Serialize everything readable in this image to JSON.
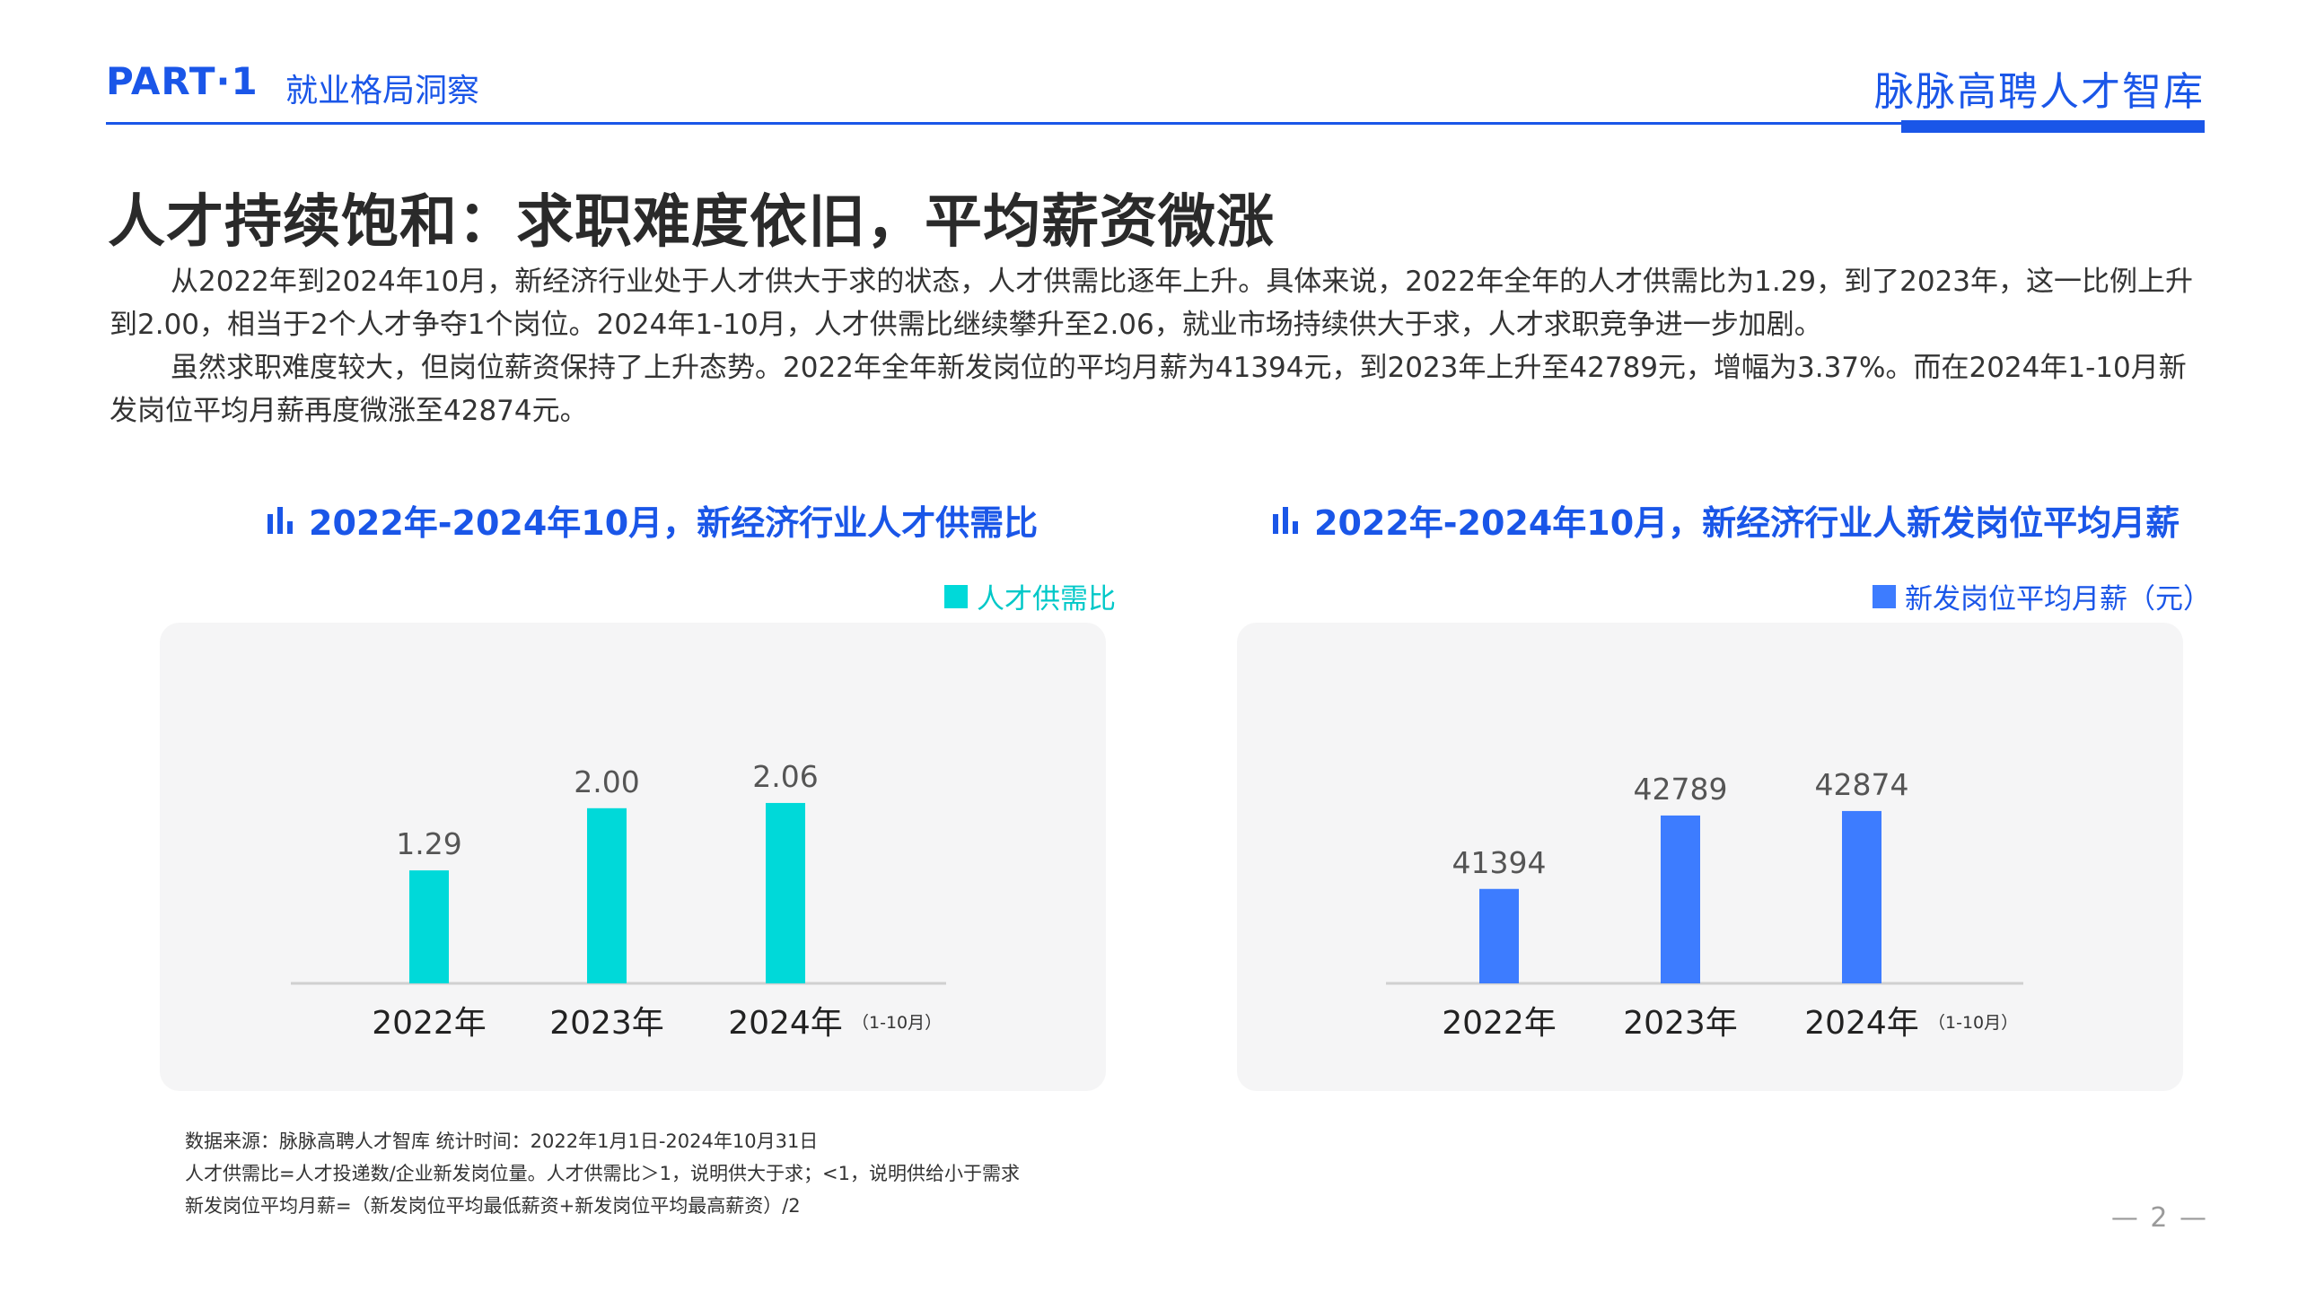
{
  "header": {
    "part": "PART·1",
    "section": "就业格局洞察",
    "brand": "脉脉高聘人才智库"
  },
  "title": "人才持续饱和：求职难度依旧，平均薪资微涨",
  "paragraphs": [
    "从2022年到2024年10月，新经济行业处于人才供大于求的状态，人才供需比逐年上升。具体来说，2022年全年的人才供需比为1.29，到了2023年，这一比例上升到2.00，相当于2个人才争夺1个岗位。2024年1-10月，人才供需比继续攀升至2.06，就业市场持续供大于求，人才求职竞争进一步加剧。",
    "虽然求职难度较大，但岗位薪资保持了上升态势。2022年全年新发岗位的平均月薪为41394元，到2023年上升至42789元，增幅为3.37%。而在2024年1-10月新发岗位平均月薪再度微涨至42874元。"
  ],
  "colors": {
    "brand": "#1a56e8",
    "cyan": "#00d9d9",
    "blue": "#3d7cff"
  },
  "chart_data": [
    {
      "type": "bar",
      "title": "2022年-2024年10月，新经济行业人才供需比",
      "categories": [
        "2022年",
        "2023年",
        "2024年"
      ],
      "category_notes": [
        "",
        "",
        "（1-10月）"
      ],
      "series": [
        {
          "name": "人才供需比",
          "values": [
            1.29,
            2.0,
            2.06
          ]
        }
      ],
      "value_labels": [
        "1.29",
        "2.00",
        "2.06"
      ],
      "ylim": [
        0,
        2.5
      ],
      "color": "#00d9d9",
      "legend_position": "top-right",
      "grid": false
    },
    {
      "type": "bar",
      "title": "2022年-2024年10月，新经济行业人新发岗位平均月薪",
      "categories": [
        "2022年",
        "2023年",
        "2024年"
      ],
      "category_notes": [
        "",
        "",
        "（1-10月）"
      ],
      "series": [
        {
          "name": "新发岗位平均月薪（元）",
          "values": [
            41394,
            42789,
            42874
          ]
        }
      ],
      "value_labels": [
        "41394",
        "42789",
        "42874"
      ],
      "ylim": [
        39600,
        44100
      ],
      "color": "#3d7cff",
      "legend_position": "top-right",
      "grid": false
    }
  ],
  "notes": [
    "数据来源：脉脉高聘人才智库 统计时间：2022年1月1日-2024年10月31日",
    "人才供需比=人才投递数/企业新发岗位量。人才供需比＞1，说明供大于求；<1，说明供给小于需求",
    "新发岗位平均月薪=（新发岗位平均最低薪资+新发岗位平均最高薪资）/2"
  ],
  "page_number": "— 2 —"
}
